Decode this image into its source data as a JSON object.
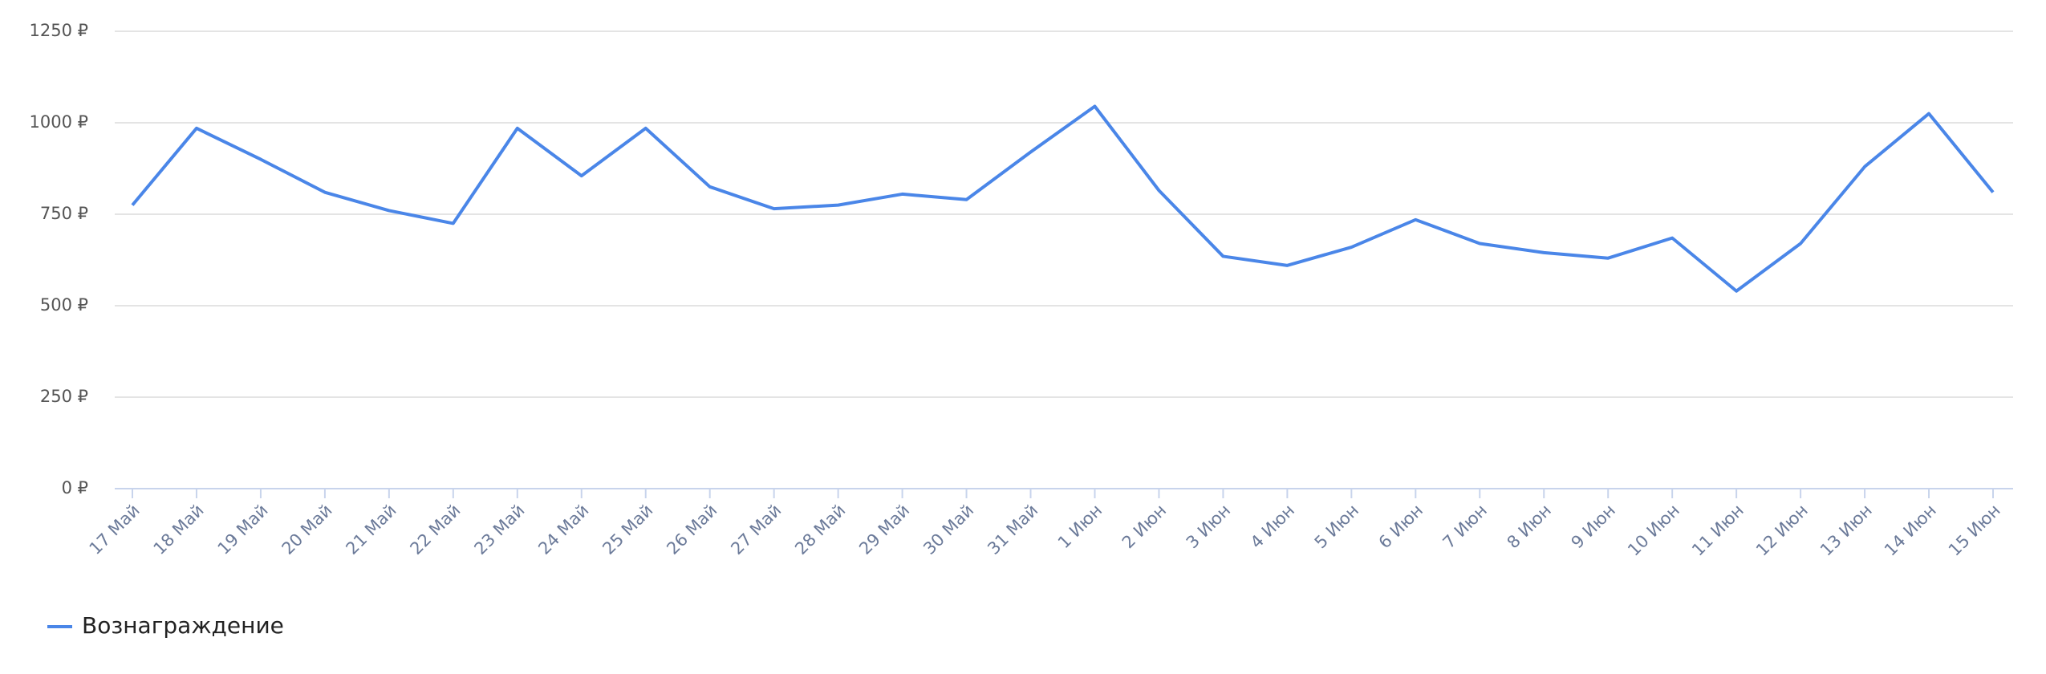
{
  "chart_data": {
    "type": "line",
    "categories": [
      "17 Май",
      "18 Май",
      "19 Май",
      "20 Май",
      "21 Май",
      "22 Май",
      "23 Май",
      "24 Май",
      "25 Май",
      "26 Май",
      "27 Май",
      "28 Май",
      "29 Май",
      "30 Май",
      "31 Май",
      "1 Июн",
      "2 Июн",
      "3 Июн",
      "4 Июн",
      "5 Июн",
      "6 Июн",
      "7 Июн",
      "8 Июн",
      "9 Июн",
      "10 Июн",
      "11 Июн",
      "12 Июн",
      "13 Июн",
      "14 Июн",
      "15 Июн"
    ],
    "series": [
      {
        "name": "Вознаграждение",
        "color": "#4a86e8",
        "values": [
          775,
          985,
          900,
          810,
          760,
          725,
          985,
          855,
          985,
          825,
          765,
          775,
          805,
          790,
          920,
          1045,
          815,
          635,
          610,
          660,
          735,
          670,
          645,
          630,
          685,
          540,
          670,
          880,
          1025,
          810
        ]
      }
    ],
    "ylim": [
      0,
      1250
    ],
    "yticks": [
      {
        "value": 0,
        "label": "0 ₽"
      },
      {
        "value": 250,
        "label": "250 ₽"
      },
      {
        "value": 500,
        "label": "500 ₽"
      },
      {
        "value": 750,
        "label": "750 ₽"
      },
      {
        "value": 1000,
        "label": "1000 ₽"
      },
      {
        "value": 1250,
        "label": "1250 ₽"
      }
    ],
    "grid": true,
    "legend": "bottom-left"
  }
}
